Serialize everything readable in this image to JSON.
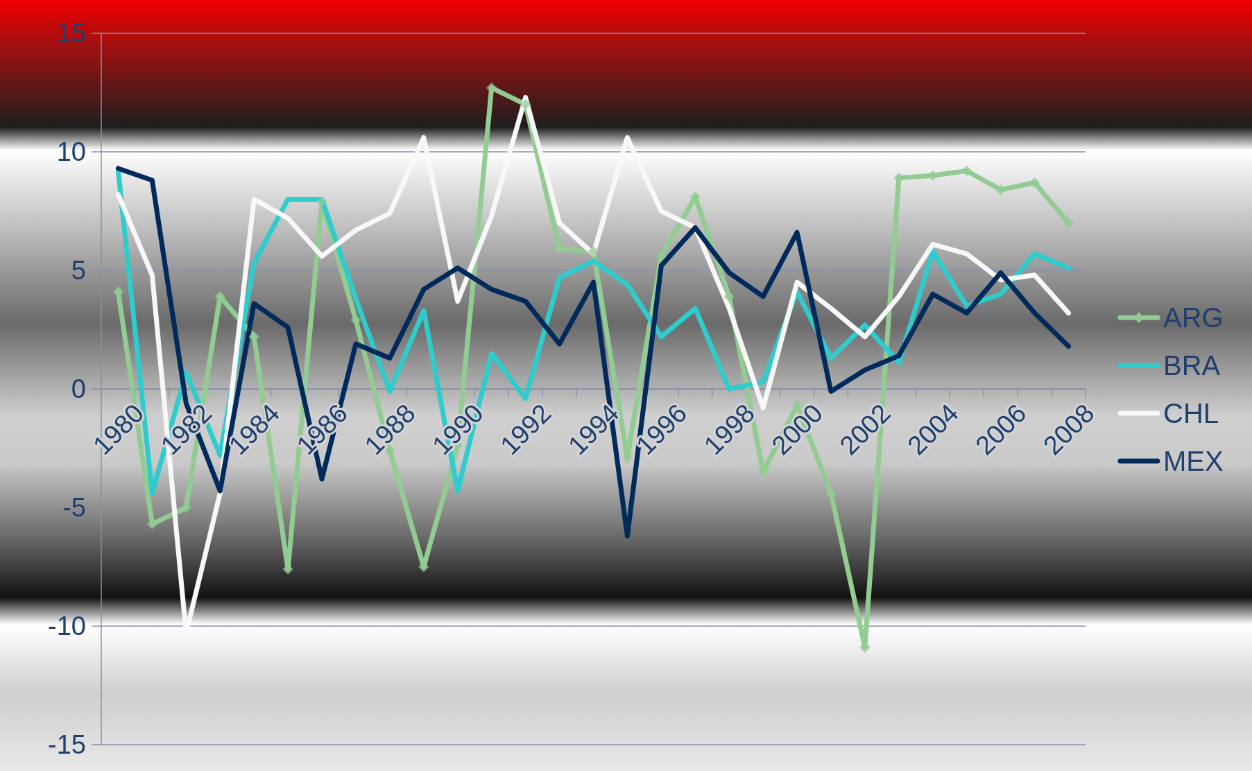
{
  "chart_data": {
    "type": "line",
    "categories": [
      "1980",
      null,
      "1982",
      null,
      "1984",
      null,
      "1986",
      null,
      "1988",
      null,
      "1990",
      null,
      "1992",
      null,
      "1994",
      null,
      "1996",
      null,
      "1998",
      null,
      "2000",
      null,
      "2002",
      null,
      "2004",
      null,
      "2006",
      null,
      "2008"
    ],
    "series": [
      {
        "name": "ARG",
        "color": "#92cc92",
        "marker": "diamond",
        "values": [
          4.1,
          -5.7,
          -5.0,
          3.9,
          2.2,
          -7.6,
          7.9,
          2.9,
          -2.6,
          -7.5,
          -2.4,
          12.7,
          12.0,
          5.9,
          5.8,
          -2.9,
          5.6,
          8.1,
          3.9,
          -3.5,
          -0.7,
          -4.4,
          -10.9,
          8.9,
          9.0,
          9.2,
          8.4,
          8.7,
          7.0
        ]
      },
      {
        "name": "BRA",
        "color": "#2ecccc",
        "values": [
          9.2,
          -4.4,
          0.7,
          -2.8,
          5.3,
          8.0,
          8.0,
          3.8,
          -0.1,
          3.3,
          -4.3,
          1.5,
          -0.4,
          4.7,
          5.4,
          4.4,
          2.2,
          3.4,
          0.0,
          0.3,
          4.1,
          1.3,
          2.7,
          1.1,
          5.8,
          3.5,
          4.0,
          5.7,
          5.1
        ]
      },
      {
        "name": "CHL",
        "color": "#f8f8f8",
        "values": [
          8.2,
          4.8,
          -10.3,
          -4.4,
          8.0,
          7.2,
          5.6,
          6.7,
          7.4,
          10.6,
          3.7,
          7.3,
          12.3,
          7.0,
          5.7,
          10.6,
          7.5,
          6.8,
          3.4,
          -0.8,
          4.5,
          3.4,
          2.2,
          3.9,
          6.1,
          5.7,
          4.6,
          4.8,
          3.2
        ]
      },
      {
        "name": "MEX",
        "color": "#002a5c",
        "values": [
          9.3,
          8.8,
          -0.6,
          -4.3,
          3.6,
          2.6,
          -3.8,
          1.9,
          1.3,
          4.2,
          5.1,
          4.2,
          3.7,
          1.9,
          4.5,
          -6.2,
          5.2,
          6.8,
          4.9,
          3.9,
          6.6,
          -0.1,
          0.8,
          1.4,
          4.0,
          3.2,
          4.9,
          3.2,
          1.8
        ]
      }
    ],
    "ylim": [
      -15,
      15
    ],
    "yticks": [
      -15,
      -10,
      -5,
      0,
      5,
      10,
      15
    ],
    "grid": "y",
    "legend": "right",
    "line_style": "solid"
  }
}
